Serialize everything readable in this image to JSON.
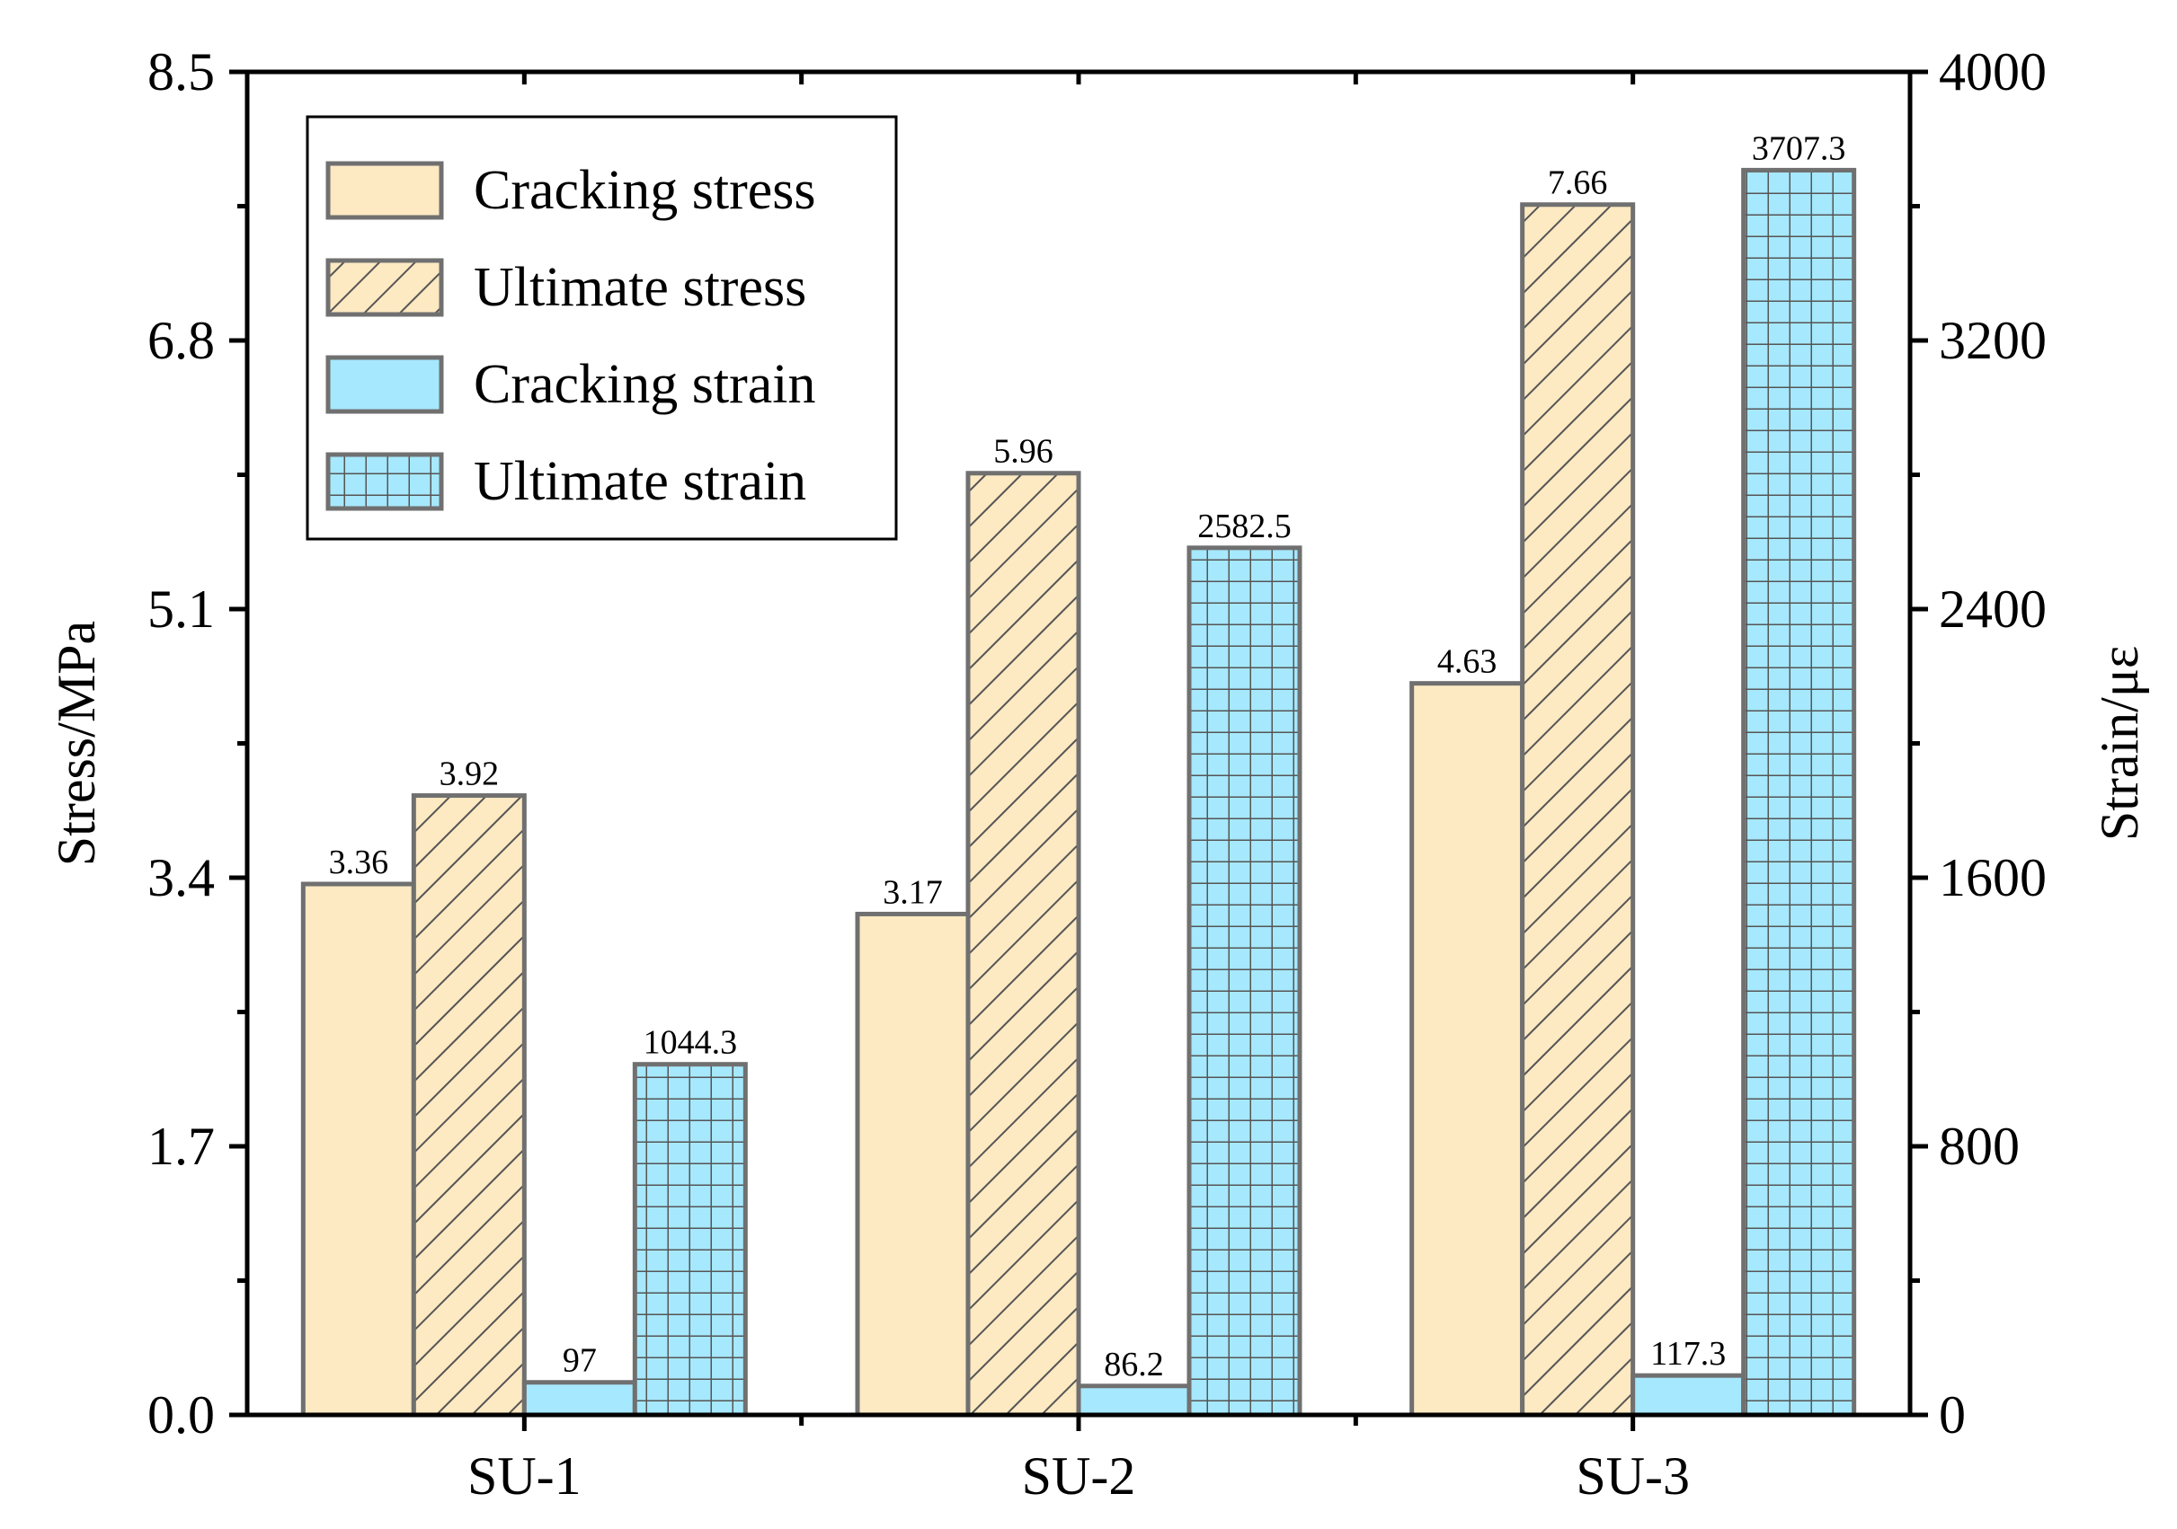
{
  "chart_data": {
    "type": "bar",
    "categories": [
      "SU-1",
      "SU-2",
      "SU-3"
    ],
    "y_left": {
      "label": "Stress/MPa",
      "range": [
        0,
        8.5
      ],
      "ticks": [
        "0.0",
        "1.7",
        "3.4",
        "5.1",
        "6.8",
        "8.5"
      ]
    },
    "y_right": {
      "label": "Strain/με",
      "range": [
        0,
        4000
      ],
      "ticks": [
        "0",
        "800",
        "1600",
        "2400",
        "3200",
        "4000"
      ]
    },
    "series": [
      {
        "name": "Cracking stress",
        "axis": "left",
        "pattern": "solid",
        "color": "#FDE9C2",
        "values": [
          3.36,
          3.17,
          4.63
        ],
        "labels": [
          "3.36",
          "3.17",
          "4.63"
        ]
      },
      {
        "name": "Ultimate  stress",
        "axis": "left",
        "pattern": "hatch",
        "color": "#FDE9C2",
        "values": [
          3.92,
          5.96,
          7.66
        ],
        "labels": [
          "3.92",
          "5.96",
          "7.66"
        ]
      },
      {
        "name": "Cracking strain",
        "axis": "right",
        "pattern": "solid",
        "color": "#A6E8FD",
        "values": [
          97,
          86.2,
          117.3
        ],
        "labels": [
          "97",
          "86.2",
          "117.3"
        ]
      },
      {
        "name": "Ultimate  strain",
        "axis": "right",
        "pattern": "grid",
        "color": "#A6E8FD",
        "values": [
          1044.3,
          2582.5,
          3707.3
        ],
        "labels": [
          "1044.3",
          "2582.5",
          "3707.3"
        ]
      }
    ],
    "legend_position": "top-left",
    "grid": false,
    "bar_edge_color": "#707070"
  }
}
